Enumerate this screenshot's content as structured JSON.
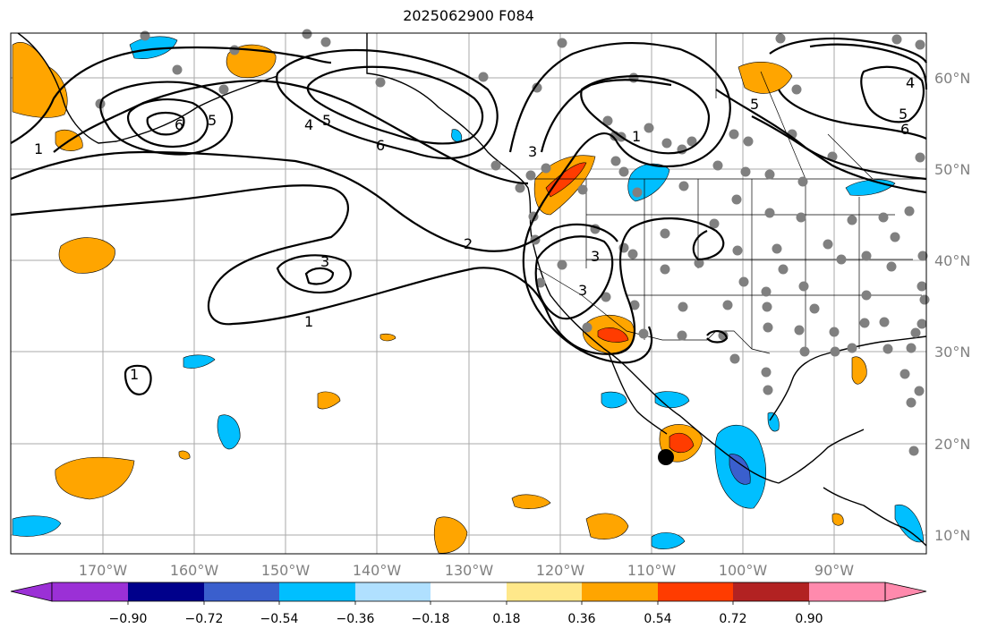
{
  "title": "2025062900 F084",
  "map": {
    "lon_labels": [
      "170°W",
      "160°W",
      "150°W",
      "140°W",
      "130°W",
      "120°W",
      "110°W",
      "100°W",
      "90°W"
    ],
    "lat_labels": [
      "60°N",
      "50°N",
      "40°N",
      "30°N",
      "20°N",
      "10°N"
    ],
    "contour_labels": [
      "1",
      "1",
      "1",
      "2",
      "3",
      "3",
      "3",
      "4",
      "5",
      "5",
      "6",
      "6",
      "1",
      "4",
      "5",
      "6",
      "5",
      "3"
    ]
  },
  "colorbar": {
    "ticks": [
      "−0.90",
      "−0.72",
      "−0.54",
      "−0.36",
      "−0.18",
      "0.18",
      "0.36",
      "0.54",
      "0.72",
      "0.90"
    ],
    "colors": [
      "#9b30d6",
      "#00008b",
      "#3a5fcd",
      "#00bfff",
      "#b0e0ff",
      "#ffffff",
      "#ffe88a",
      "#ffa500",
      "#ff3c00",
      "#b22222",
      "#ff8aad"
    ]
  },
  "colors": {
    "land_outline": "#000000",
    "grid": "#aaaaaa",
    "station_dot": "#808080"
  }
}
